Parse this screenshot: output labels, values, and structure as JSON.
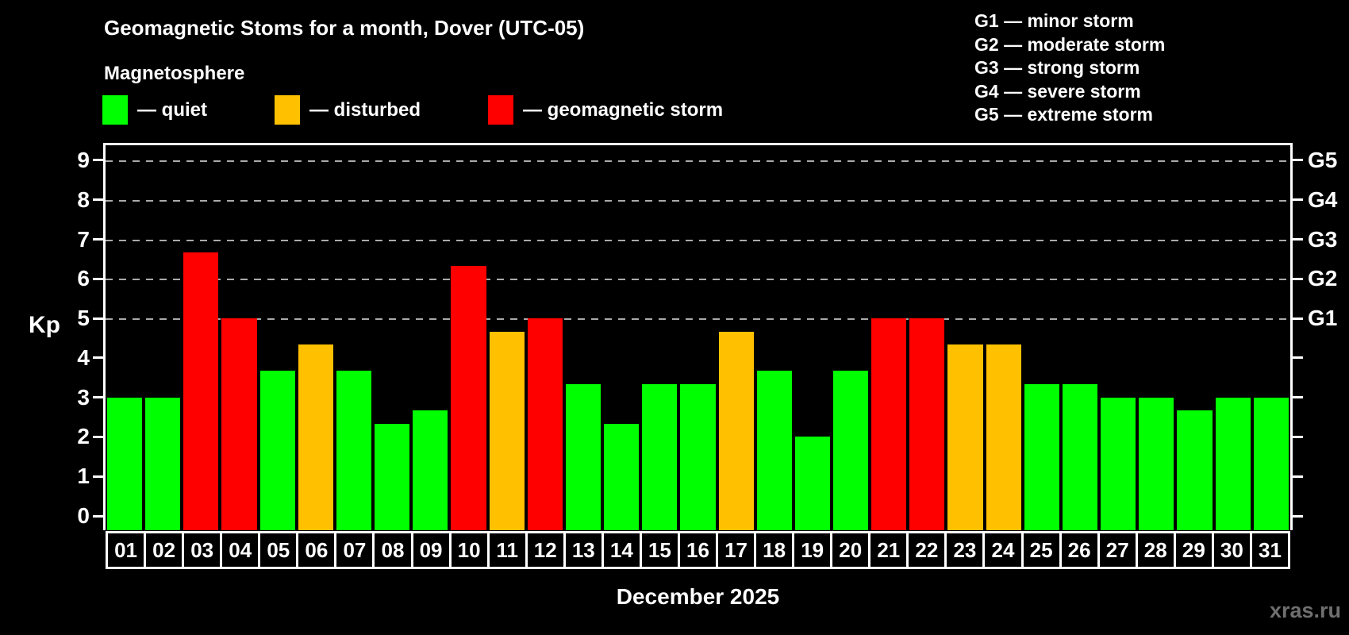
{
  "header": {
    "title": "Geomagnetic Stoms for a month, Dover (UTC-05)",
    "subtitle": "Magnetosphere"
  },
  "legend": {
    "items": [
      {
        "label": "— quiet",
        "status": "quiet"
      },
      {
        "label": "— disturbed",
        "status": "disturbed"
      },
      {
        "label": "— geomagnetic storm",
        "status": "storm"
      }
    ]
  },
  "g_legend": {
    "items": [
      {
        "text": "G1 — minor storm"
      },
      {
        "text": "G2 — moderate storm"
      },
      {
        "text": "G3 — strong storm"
      },
      {
        "text": "G4 — severe storm"
      },
      {
        "text": "G5 — extreme storm"
      }
    ]
  },
  "colors": {
    "quiet": "#00ff00",
    "disturbed": "#ffc000",
    "storm": "#ff0000",
    "grid": "#aaaaaa",
    "axis": "#ffffff",
    "watermark": "#6f6f6f"
  },
  "chart_data": {
    "type": "bar",
    "title": "Geomagnetic Stoms for a month, Dover (UTC-05)",
    "ylabel": "Kp",
    "xlabel": "December 2025",
    "ylim": [
      0,
      9.4
    ],
    "yticks": [
      0,
      1,
      2,
      3,
      4,
      5,
      6,
      7,
      8,
      9
    ],
    "gridlines": [
      5,
      6,
      7,
      8,
      9
    ],
    "grid_style": "dashed",
    "right_axis": [
      {
        "value": 5,
        "label": "G1"
      },
      {
        "value": 6,
        "label": "G2"
      },
      {
        "value": 7,
        "label": "G3"
      },
      {
        "value": 8,
        "label": "G4"
      },
      {
        "value": 9,
        "label": "G5"
      }
    ],
    "categories": [
      "01",
      "02",
      "03",
      "04",
      "05",
      "06",
      "07",
      "08",
      "09",
      "10",
      "11",
      "12",
      "13",
      "14",
      "15",
      "16",
      "17",
      "18",
      "19",
      "20",
      "21",
      "22",
      "23",
      "24",
      "25",
      "26",
      "27",
      "28",
      "29",
      "30",
      "31"
    ],
    "values": [
      3,
      3,
      6.67,
      5,
      3.67,
      4.33,
      3.67,
      2.33,
      2.67,
      6.33,
      4.67,
      5,
      3.33,
      2.33,
      3.33,
      3.33,
      4.67,
      3.67,
      2,
      3.67,
      5,
      5,
      4.33,
      4.33,
      3.33,
      3.33,
      3,
      3,
      2.67,
      3,
      3
    ],
    "statuses": [
      "quiet",
      "quiet",
      "storm",
      "storm",
      "quiet",
      "disturbed",
      "quiet",
      "quiet",
      "quiet",
      "storm",
      "disturbed",
      "storm",
      "quiet",
      "quiet",
      "quiet",
      "quiet",
      "disturbed",
      "quiet",
      "quiet",
      "quiet",
      "storm",
      "storm",
      "disturbed",
      "disturbed",
      "quiet",
      "quiet",
      "quiet",
      "quiet",
      "quiet",
      "quiet",
      "quiet"
    ]
  },
  "footer": {
    "month_label": "December 2025",
    "watermark": "xras.ru"
  }
}
